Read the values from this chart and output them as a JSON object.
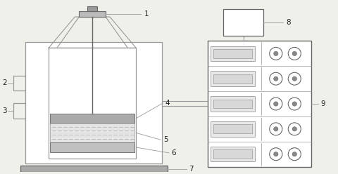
{
  "bg_color": "#f0f0eb",
  "lc": "#999999",
  "dc": "#666666",
  "lgray": "#bbbbbb",
  "mgray": "#999999",
  "darkgray": "#888888",
  "label_fs": 7.5
}
